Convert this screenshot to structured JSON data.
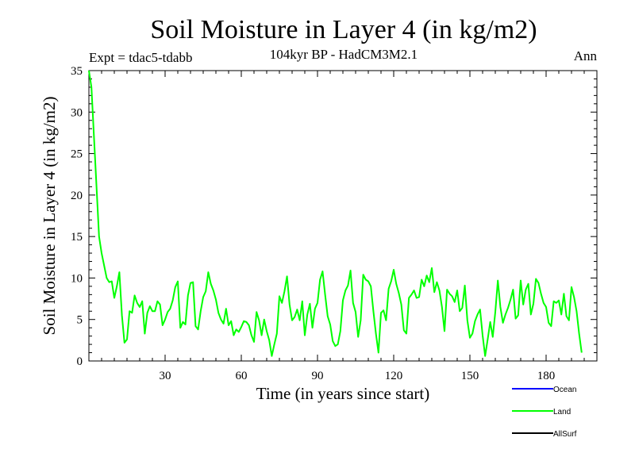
{
  "chart_data": {
    "type": "line",
    "title": "Soil Moisture in Layer 4 (in kg/m2)",
    "subtitle": "104kyr BP - HadCM3M2.1",
    "expt_label": "Expt = tdac5-tdabb",
    "period_label": "Ann",
    "xlabel": "Time (in years since start)",
    "ylabel": "Soil Moisture in Layer 4 (in kg/m2)",
    "xlim": [
      0,
      200
    ],
    "ylim": [
      0,
      35
    ],
    "x_ticks": [
      30,
      60,
      90,
      120,
      150,
      180
    ],
    "y_ticks": [
      0,
      5,
      10,
      15,
      20,
      25,
      30,
      35
    ],
    "legend_position": "bottom-right",
    "series": [
      {
        "name": "Ocean",
        "color": "#0000ff",
        "values": []
      },
      {
        "name": "Land",
        "color": "#00ff00",
        "x_start": 0,
        "x_step": 1,
        "values": [
          35,
          33,
          27,
          21,
          15,
          13,
          11.5,
          10,
          9.5,
          9.6,
          7.6,
          9,
          10.7,
          5.5,
          2.2,
          2.6,
          6,
          5.8,
          7.9,
          7,
          6.5,
          7.2,
          3.3,
          5.8,
          6.6,
          6,
          6,
          7.2,
          6.8,
          4.3,
          5,
          5.9,
          6.3,
          7.3,
          8.9,
          9.6,
          4,
          4.7,
          4.4,
          7.9,
          9.4,
          9.5,
          4.2,
          3.8,
          6,
          7.7,
          8.4,
          10.7,
          9.3,
          8.5,
          7.4,
          5.8,
          5,
          4.5,
          6.3,
          4.3,
          4.8,
          3.1,
          3.8,
          3.5,
          4.1,
          4.8,
          4.7,
          4.3,
          3.1,
          2.3,
          5.9,
          4.9,
          3.1,
          5,
          3.6,
          2.5,
          0.6,
          2,
          3.3,
          7.8,
          7,
          8.4,
          10.2,
          6.8,
          4.9,
          5.3,
          6.2,
          4.9,
          7.2,
          3.1,
          5.6,
          6.9,
          4,
          6.3,
          7,
          9.8,
          10.8,
          8,
          5.4,
          4.4,
          2.4,
          1.8,
          2,
          3.6,
          7.3,
          8.5,
          9.1,
          10.9,
          7,
          5.9,
          2.9,
          4.9,
          10.4,
          9.8,
          9.6,
          9,
          6,
          3.3,
          1,
          5.8,
          6.1,
          4.9,
          8.7,
          9.6,
          11,
          9.3,
          8.2,
          6.8,
          3.7,
          3.3,
          7.6,
          8,
          8.5,
          7.6,
          7.7,
          9.8,
          9,
          10.3,
          9.5,
          11.2,
          8.3,
          9.5,
          8.5,
          6.5,
          3.6,
          8.6,
          8.1,
          7.8,
          7.1,
          8.5,
          6,
          6.4,
          9.1,
          4.9,
          2.8,
          3.3,
          4.8,
          5.6,
          6.2,
          3.1,
          0.6,
          2.6,
          4.7,
          2.9,
          5.9,
          9.7,
          6.5,
          4.6,
          5.6,
          6.4,
          7.4,
          8.6,
          5.1,
          5.5,
          9.7,
          6.8,
          8.6,
          9.3,
          5.6,
          6.9,
          9.9,
          9.4,
          8.1,
          7,
          6.5,
          4.6,
          4.2,
          7.2,
          7,
          7.3,
          5.6,
          8.1,
          5.4,
          4.9,
          8.9,
          7.7,
          6,
          3.3,
          1
        ]
      },
      {
        "name": "AllSurf",
        "color": "#000000",
        "values": []
      }
    ]
  }
}
